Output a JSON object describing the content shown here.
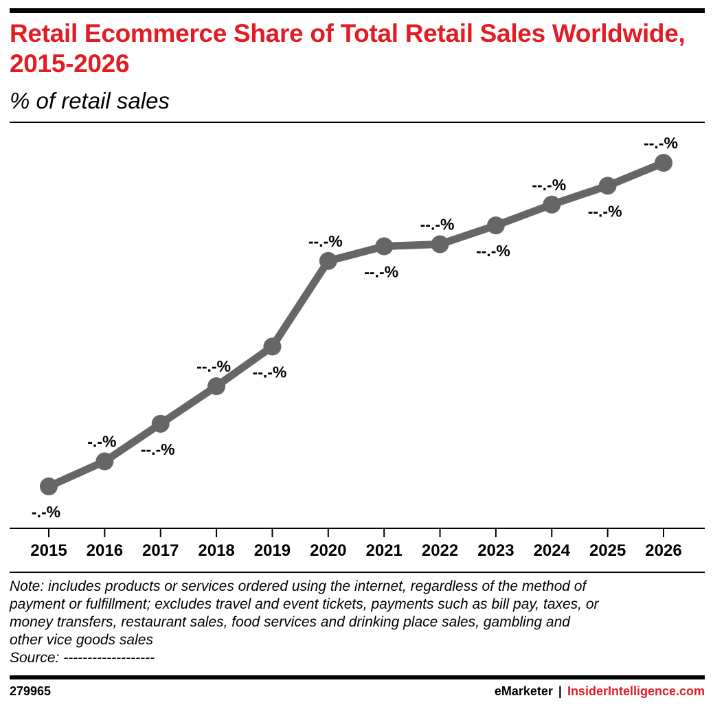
{
  "header": {
    "title": "Retail Ecommerce Share of Total Retail Sales Worldwide, 2015-2026",
    "subtitle": "% of retail sales"
  },
  "chart_data": {
    "type": "line",
    "title": "Retail Ecommerce Share of Total Retail Sales Worldwide, 2015-2026",
    "subtitle": "% of retail sales",
    "xlabel": "",
    "ylabel": "",
    "categories": [
      "2015",
      "2016",
      "2017",
      "2018",
      "2019",
      "2020",
      "2021",
      "2022",
      "2023",
      "2024",
      "2025",
      "2026"
    ],
    "series": [
      {
        "values": [
          7.4,
          8.6,
          10.4,
          12.2,
          14.1,
          18.2,
          18.9,
          19.0,
          19.9,
          20.9,
          21.8,
          22.9
        ],
        "data_labels": [
          "-.-%",
          "-.-%",
          "--.-%",
          "--.-%",
          "--.-%",
          "--.-%",
          "--.-%",
          "--.-%",
          "--.-%",
          "--.-%",
          "--.-%",
          "--.-%"
        ],
        "label_positions": [
          "below",
          "above",
          "below",
          "above",
          "below",
          "above",
          "below",
          "above",
          "below",
          "above",
          "below",
          "above"
        ]
      }
    ],
    "ylim": [
      5,
      25
    ],
    "grid": false,
    "line_color": "#666666"
  },
  "footnote": {
    "lines": [
      "Note: includes products or services ordered using the internet, regardless of the method of",
      "payment or fulfillment; excludes travel and event tickets, payments such as bill pay, taxes, or",
      "money transfers, restaurant sales, food services and drinking place sales, gambling and",
      "other vice goods sales",
      "Source: -------------------"
    ]
  },
  "footer": {
    "chart_id": "279965",
    "brand_primary": "eMarketer",
    "separator": "|",
    "brand_secondary": "InsiderIntelligence.com"
  },
  "colors": {
    "title": "#e31c23",
    "brand_link": "#e31c23",
    "line": "#666666",
    "text": "#000000"
  }
}
